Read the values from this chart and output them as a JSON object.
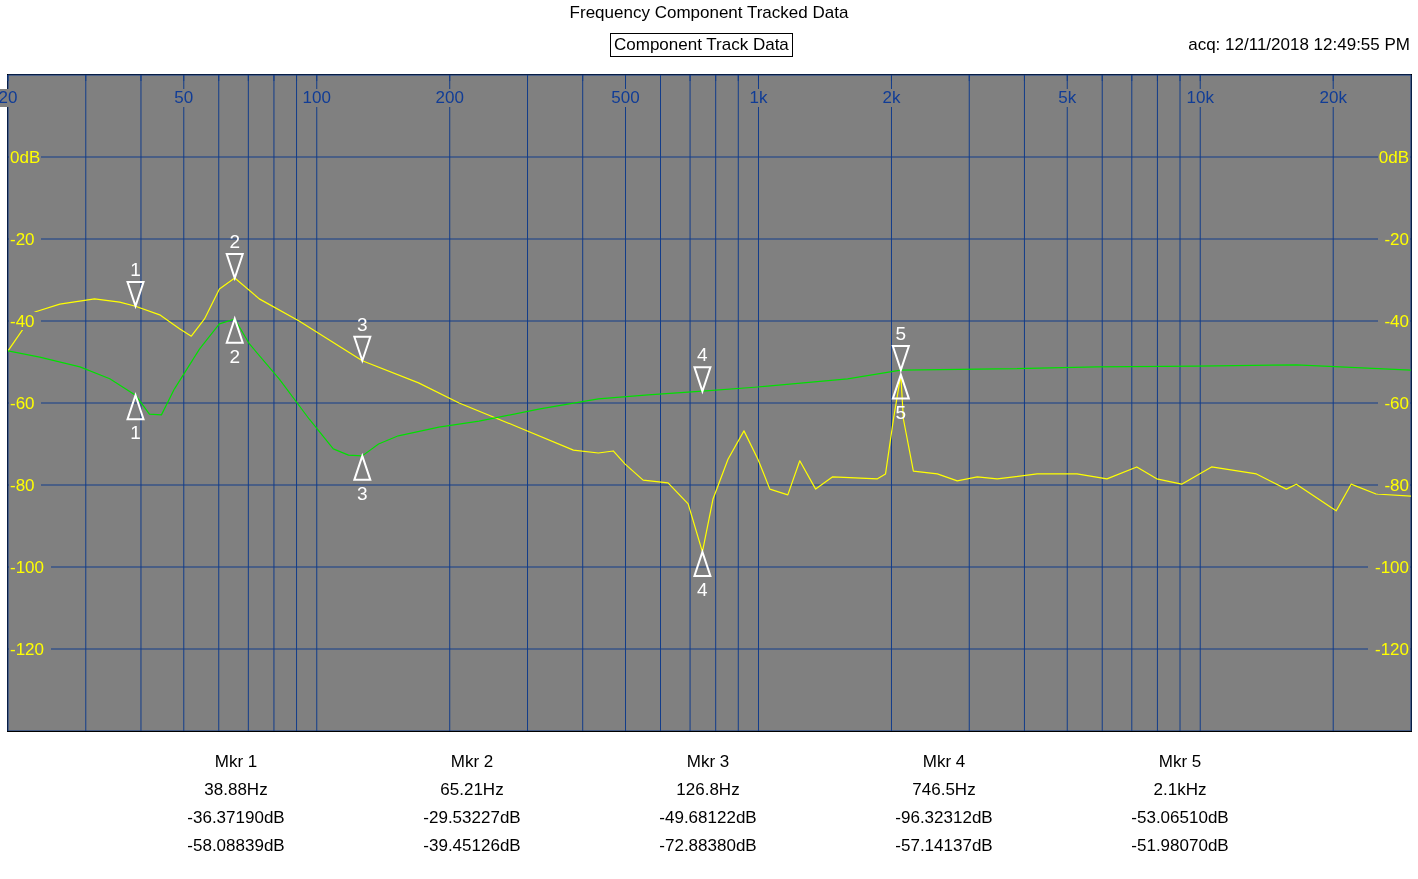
{
  "chart_data": {
    "type": "line",
    "title": "Frequency Component Tracked Data",
    "subtitle": "Component Track Data",
    "xlim": [
      20,
      30000
    ],
    "ylim": [
      -140,
      20
    ],
    "y2lim": [
      -140,
      20
    ],
    "log": "x",
    "grid": true,
    "xticks": [
      20,
      {
        "value": 30,
        "label": null
      },
      {
        "value": 40,
        "label": null
      },
      50,
      {
        "value": 60,
        "label": null
      },
      {
        "value": 70,
        "label": null
      },
      {
        "value": 80,
        "label": null
      },
      {
        "value": 90,
        "label": null
      },
      100,
      200,
      {
        "value": 300,
        "label": null
      },
      {
        "value": 400,
        "label": null
      },
      500,
      {
        "value": 600,
        "label": null
      },
      {
        "value": 700,
        "label": null
      },
      {
        "value": 800,
        "label": null
      },
      {
        "value": 900,
        "label": null
      },
      {
        "value": 1000,
        "label": "1k"
      },
      {
        "value": 2000,
        "label": "2k"
      },
      {
        "value": 3000,
        "label": null
      },
      {
        "value": 4000,
        "label": null
      },
      {
        "value": 5000,
        "label": "5k"
      },
      {
        "value": 6000,
        "label": null
      },
      {
        "value": 7000,
        "label": null
      },
      {
        "value": 8000,
        "label": null
      },
      {
        "value": 9000,
        "label": null
      },
      {
        "value": 10000,
        "label": "10k"
      },
      {
        "value": 20000,
        "label": "20k"
      }
    ],
    "yticks": [
      {
        "value": 0,
        "label": "0dB"
      },
      -20,
      -40,
      -60,
      -80,
      -100,
      -120
    ],
    "y2ticks": [
      {
        "value": 0,
        "label": "0dB"
      },
      -20,
      -40,
      -60,
      -80,
      -100,
      -120
    ],
    "series": [
      {
        "color": "#ffff00",
        "x": [
          20,
          23,
          26.2,
          31.4,
          35.8,
          38.88,
          44.1,
          48.9,
          52,
          55.7,
          60.2,
          65.21,
          74.1,
          91.2,
          126.8,
          170,
          210,
          286,
          381,
          434,
          469,
          499,
          548,
          624,
          693,
          746.5,
          789,
          853,
          927,
          997,
          1061,
          1165,
          1240,
          1347,
          1472,
          1859,
          1939,
          2021,
          2100,
          2128,
          2242,
          2540,
          2818,
          3128,
          3470,
          4272,
          5260,
          6148,
          7184,
          7972,
          9078,
          10608,
          13404,
          15664,
          16500,
          20313,
          21960,
          25005,
          30000
        ],
        "values": [
          -47.3,
          -37.8,
          -35.9,
          -34.6,
          -35.4,
          -36.4,
          -38.5,
          -41.9,
          -43.7,
          -39.5,
          -32.2,
          -29.5,
          -34.6,
          -40,
          -49.7,
          -55.1,
          -60,
          -65.9,
          -71.5,
          -72.2,
          -71.7,
          -74.9,
          -78.8,
          -79.5,
          -84.6,
          -96.3,
          -83.4,
          -73.7,
          -66.8,
          -73.7,
          -81,
          -82.4,
          -74.1,
          -81,
          -78,
          -78.5,
          -77.3,
          -63.9,
          -53.1,
          -63.9,
          -76.6,
          -77.3,
          -79,
          -78,
          -78.5,
          -77.3,
          -77.3,
          -78.5,
          -75.6,
          -78.5,
          -79.8,
          -75.6,
          -77.3,
          -81,
          -79.8,
          -86.3,
          -79.8,
          -82.2,
          -82.7
        ]
      },
      {
        "color": "#00e000",
        "x": [
          20,
          23.6,
          29.1,
          34,
          38.88,
          41.8,
          44.5,
          47.6,
          54.3,
          60.2,
          65.21,
          70.4,
          82.2,
          96.1,
          109,
          118,
          126.8,
          138,
          153,
          189,
          233,
          318,
          434,
          563,
          746.5,
          997,
          1591,
          2100,
          3470,
          5834,
          9814,
          16500,
          30000
        ],
        "values": [
          -47.3,
          -48.8,
          -51.2,
          -54.1,
          -58.1,
          -62.7,
          -62.9,
          -56.6,
          -46.8,
          -40.7,
          -39.5,
          -45.6,
          -54.1,
          -63.9,
          -71.2,
          -72.7,
          -72.9,
          -70,
          -68,
          -65.9,
          -64.4,
          -61.5,
          -59,
          -58,
          -57.1,
          -56.1,
          -54.1,
          -52,
          -51.7,
          -51.2,
          -51,
          -50.7,
          -52
        ]
      }
    ],
    "annotations": [
      "acq: 12/11/2018 12:49:55 PM",
      "Mkr 1",
      "38.88Hz",
      "-36.37190dB",
      "-58.08839dB",
      "Mkr 2",
      "65.21Hz",
      "-29.53227dB",
      "-39.45126dB",
      "Mkr 3",
      "126.8Hz",
      "-49.68122dB",
      "-72.88380dB",
      "Mkr 4",
      "746.5Hz",
      "-96.32312dB",
      "-57.14137dB",
      "Mkr 5",
      "2.1kHz",
      "-53.06510dB",
      "-51.98070dB",
      {
        "text": "1",
        "x": 38.88,
        "y": -36.3719
      },
      {
        "text": "2",
        "x": 65.21,
        "y": -29.53227
      },
      {
        "text": "3",
        "x": 126.8,
        "y": -49.68122
      },
      {
        "text": "4",
        "x": 746.5,
        "y": -96.32312
      },
      {
        "text": "5",
        "x": 2100,
        "y": -53.0651
      },
      {
        "text": "1",
        "x": 38.88,
        "y": -58.08839
      },
      {
        "text": "2",
        "x": 65.21,
        "y": -39.45126
      },
      {
        "text": "3",
        "x": 126.8,
        "y": -72.8838
      },
      {
        "text": "4",
        "x": 746.5,
        "y": -57.14137
      },
      {
        "text": "5",
        "x": 2100,
        "y": -51.9807
      }
    ]
  }
}
